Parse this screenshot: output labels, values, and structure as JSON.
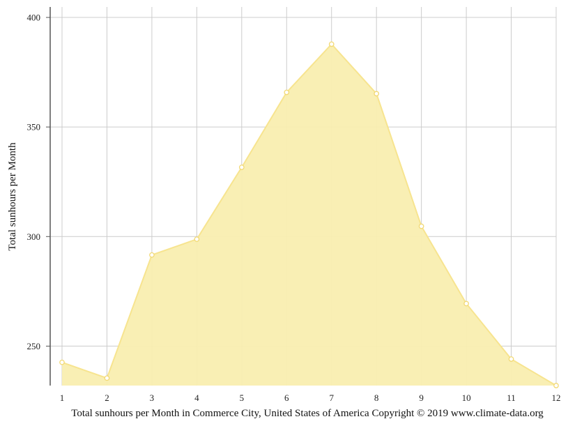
{
  "chart_data": {
    "type": "area",
    "title": "",
    "xlabel": "Total sunhours per Month in Commerce City, United States of America Copyright © 2019 www.climate-data.org",
    "ylabel": "Total sunhours per Month",
    "x": [
      1,
      2,
      3,
      4,
      5,
      6,
      7,
      8,
      9,
      10,
      11,
      12
    ],
    "values": [
      242.6,
      235.4,
      291.6,
      298.8,
      331.6,
      365.8,
      387.8,
      365.2,
      304.7,
      269.4,
      244.1,
      232.0
    ],
    "yticks": [
      250,
      300,
      350,
      400
    ],
    "ylim": [
      232,
      404
    ],
    "xlim": [
      1,
      12
    ],
    "grid": true,
    "colors": {
      "fill": "#f9eeb0",
      "line": "#f7e48f",
      "marker_stroke": "#f2d974",
      "grid": "#cccccc",
      "axis": "#555555"
    }
  }
}
